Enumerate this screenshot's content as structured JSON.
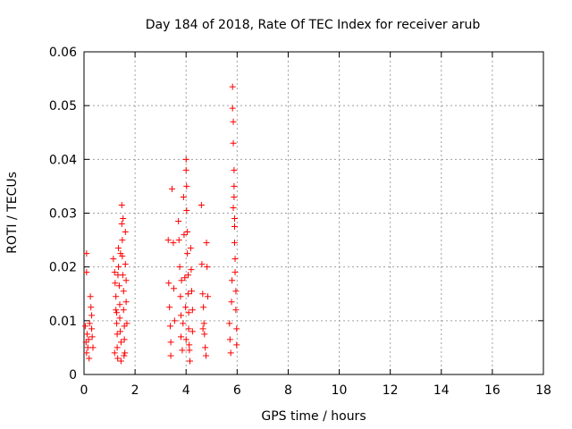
{
  "chart_data": {
    "type": "scatter",
    "title": "Day 184 of 2018, Rate Of TEC Index for receiver arub",
    "xlabel": "GPS time / hours",
    "ylabel": "ROTI / TECUs",
    "xlim": [
      0,
      18
    ],
    "ylim": [
      0,
      0.06
    ],
    "xticks": [
      0,
      2,
      4,
      6,
      8,
      10,
      12,
      14,
      16,
      18
    ],
    "xtick_labels": [
      "0",
      "2",
      "4",
      "6",
      "8",
      "10",
      "12",
      "14",
      "16",
      "18"
    ],
    "yticks": [
      0,
      0.01,
      0.02,
      0.03,
      0.04,
      0.05,
      0.06
    ],
    "ytick_labels": [
      "0",
      "0.01",
      "0.02",
      "0.03",
      "0.04",
      "0.05",
      "0.06"
    ],
    "grid": true,
    "marker": "plus",
    "color": "#ff0000",
    "points": [
      [
        0.1,
        0.0225
      ],
      [
        0.1,
        0.019
      ],
      [
        0.05,
        0.009
      ],
      [
        0.08,
        0.006
      ],
      [
        0.1,
        0.004
      ],
      [
        0.12,
        0.0075
      ],
      [
        0.15,
        0.005
      ],
      [
        0.2,
        0.003
      ],
      [
        0.25,
        0.0145
      ],
      [
        0.27,
        0.0125
      ],
      [
        0.3,
        0.011
      ],
      [
        0.3,
        0.0085
      ],
      [
        0.32,
        0.007
      ],
      [
        0.35,
        0.005
      ],
      [
        0.22,
        0.0095
      ],
      [
        0.18,
        0.0065
      ],
      [
        1.15,
        0.0215
      ],
      [
        1.2,
        0.019
      ],
      [
        1.22,
        0.017
      ],
      [
        1.25,
        0.0145
      ],
      [
        1.25,
        0.012
      ],
      [
        1.28,
        0.0095
      ],
      [
        1.3,
        0.0075
      ],
      [
        1.3,
        0.005
      ],
      [
        1.32,
        0.003
      ],
      [
        1.35,
        0.0235
      ],
      [
        1.35,
        0.02
      ],
      [
        1.38,
        0.0165
      ],
      [
        1.4,
        0.013
      ],
      [
        1.4,
        0.0105
      ],
      [
        1.42,
        0.008
      ],
      [
        1.45,
        0.006
      ],
      [
        1.45,
        0.0025
      ],
      [
        1.48,
        0.0315
      ],
      [
        1.48,
        0.028
      ],
      [
        1.5,
        0.025
      ],
      [
        1.5,
        0.022
      ],
      [
        1.52,
        0.0185
      ],
      [
        1.55,
        0.0155
      ],
      [
        1.55,
        0.012
      ],
      [
        1.58,
        0.009
      ],
      [
        1.58,
        0.0065
      ],
      [
        1.6,
        0.004
      ],
      [
        1.62,
        0.0265
      ],
      [
        1.62,
        0.0205
      ],
      [
        1.65,
        0.0175
      ],
      [
        1.65,
        0.0135
      ],
      [
        1.68,
        0.0095
      ],
      [
        1.2,
        0.004
      ],
      [
        1.28,
        0.0115
      ],
      [
        1.33,
        0.0185
      ],
      [
        1.43,
        0.0225
      ],
      [
        1.53,
        0.029
      ],
      [
        1.57,
        0.0035
      ],
      [
        3.3,
        0.025
      ],
      [
        3.32,
        0.017
      ],
      [
        3.35,
        0.0125
      ],
      [
        3.38,
        0.009
      ],
      [
        3.4,
        0.006
      ],
      [
        3.4,
        0.0035
      ],
      [
        3.45,
        0.0345
      ],
      [
        3.5,
        0.0245
      ],
      [
        3.52,
        0.016
      ],
      [
        3.55,
        0.01
      ],
      [
        3.7,
        0.0285
      ],
      [
        3.72,
        0.025
      ],
      [
        3.75,
        0.02
      ],
      [
        3.78,
        0.0145
      ],
      [
        3.8,
        0.011
      ],
      [
        3.8,
        0.007
      ],
      [
        3.85,
        0.0045
      ],
      [
        3.9,
        0.033
      ],
      [
        3.92,
        0.026
      ],
      [
        3.95,
        0.018
      ],
      [
        3.98,
        0.0125
      ],
      [
        4.0,
        0.04
      ],
      [
        4.0,
        0.038
      ],
      [
        4.02,
        0.035
      ],
      [
        4.02,
        0.0305
      ],
      [
        4.05,
        0.0265
      ],
      [
        4.05,
        0.0225
      ],
      [
        4.08,
        0.0185
      ],
      [
        4.08,
        0.015
      ],
      [
        4.1,
        0.0115
      ],
      [
        4.1,
        0.0085
      ],
      [
        4.12,
        0.0055
      ],
      [
        4.15,
        0.0025
      ],
      [
        4.18,
        0.0235
      ],
      [
        4.2,
        0.0195
      ],
      [
        4.22,
        0.0155
      ],
      [
        4.25,
        0.012
      ],
      [
        4.25,
        0.008
      ],
      [
        3.82,
        0.0175
      ],
      [
        3.88,
        0.0095
      ],
      [
        4.0,
        0.0065
      ],
      [
        4.13,
        0.0045
      ],
      [
        4.6,
        0.0315
      ],
      [
        4.65,
        0.015
      ],
      [
        4.68,
        0.0125
      ],
      [
        4.7,
        0.0095
      ],
      [
        4.72,
        0.0075
      ],
      [
        4.75,
        0.005
      ],
      [
        4.78,
        0.0035
      ],
      [
        4.8,
        0.0245
      ],
      [
        4.82,
        0.02
      ],
      [
        4.85,
        0.0145
      ],
      [
        4.62,
        0.0205
      ],
      [
        4.66,
        0.0085
      ],
      [
        5.7,
        0.0095
      ],
      [
        5.72,
        0.0065
      ],
      [
        5.75,
        0.004
      ],
      [
        5.78,
        0.0135
      ],
      [
        5.8,
        0.0175
      ],
      [
        5.82,
        0.0535
      ],
      [
        5.82,
        0.0495
      ],
      [
        5.85,
        0.047
      ],
      [
        5.85,
        0.043
      ],
      [
        5.88,
        0.038
      ],
      [
        5.88,
        0.035
      ],
      [
        5.88,
        0.033
      ],
      [
        5.9,
        0.029
      ],
      [
        5.9,
        0.0245
      ],
      [
        5.92,
        0.0215
      ],
      [
        5.92,
        0.019
      ],
      [
        5.95,
        0.0155
      ],
      [
        5.95,
        0.012
      ],
      [
        5.98,
        0.0085
      ],
      [
        5.98,
        0.0055
      ],
      [
        5.85,
        0.031
      ],
      [
        5.9,
        0.0275
      ]
    ]
  }
}
